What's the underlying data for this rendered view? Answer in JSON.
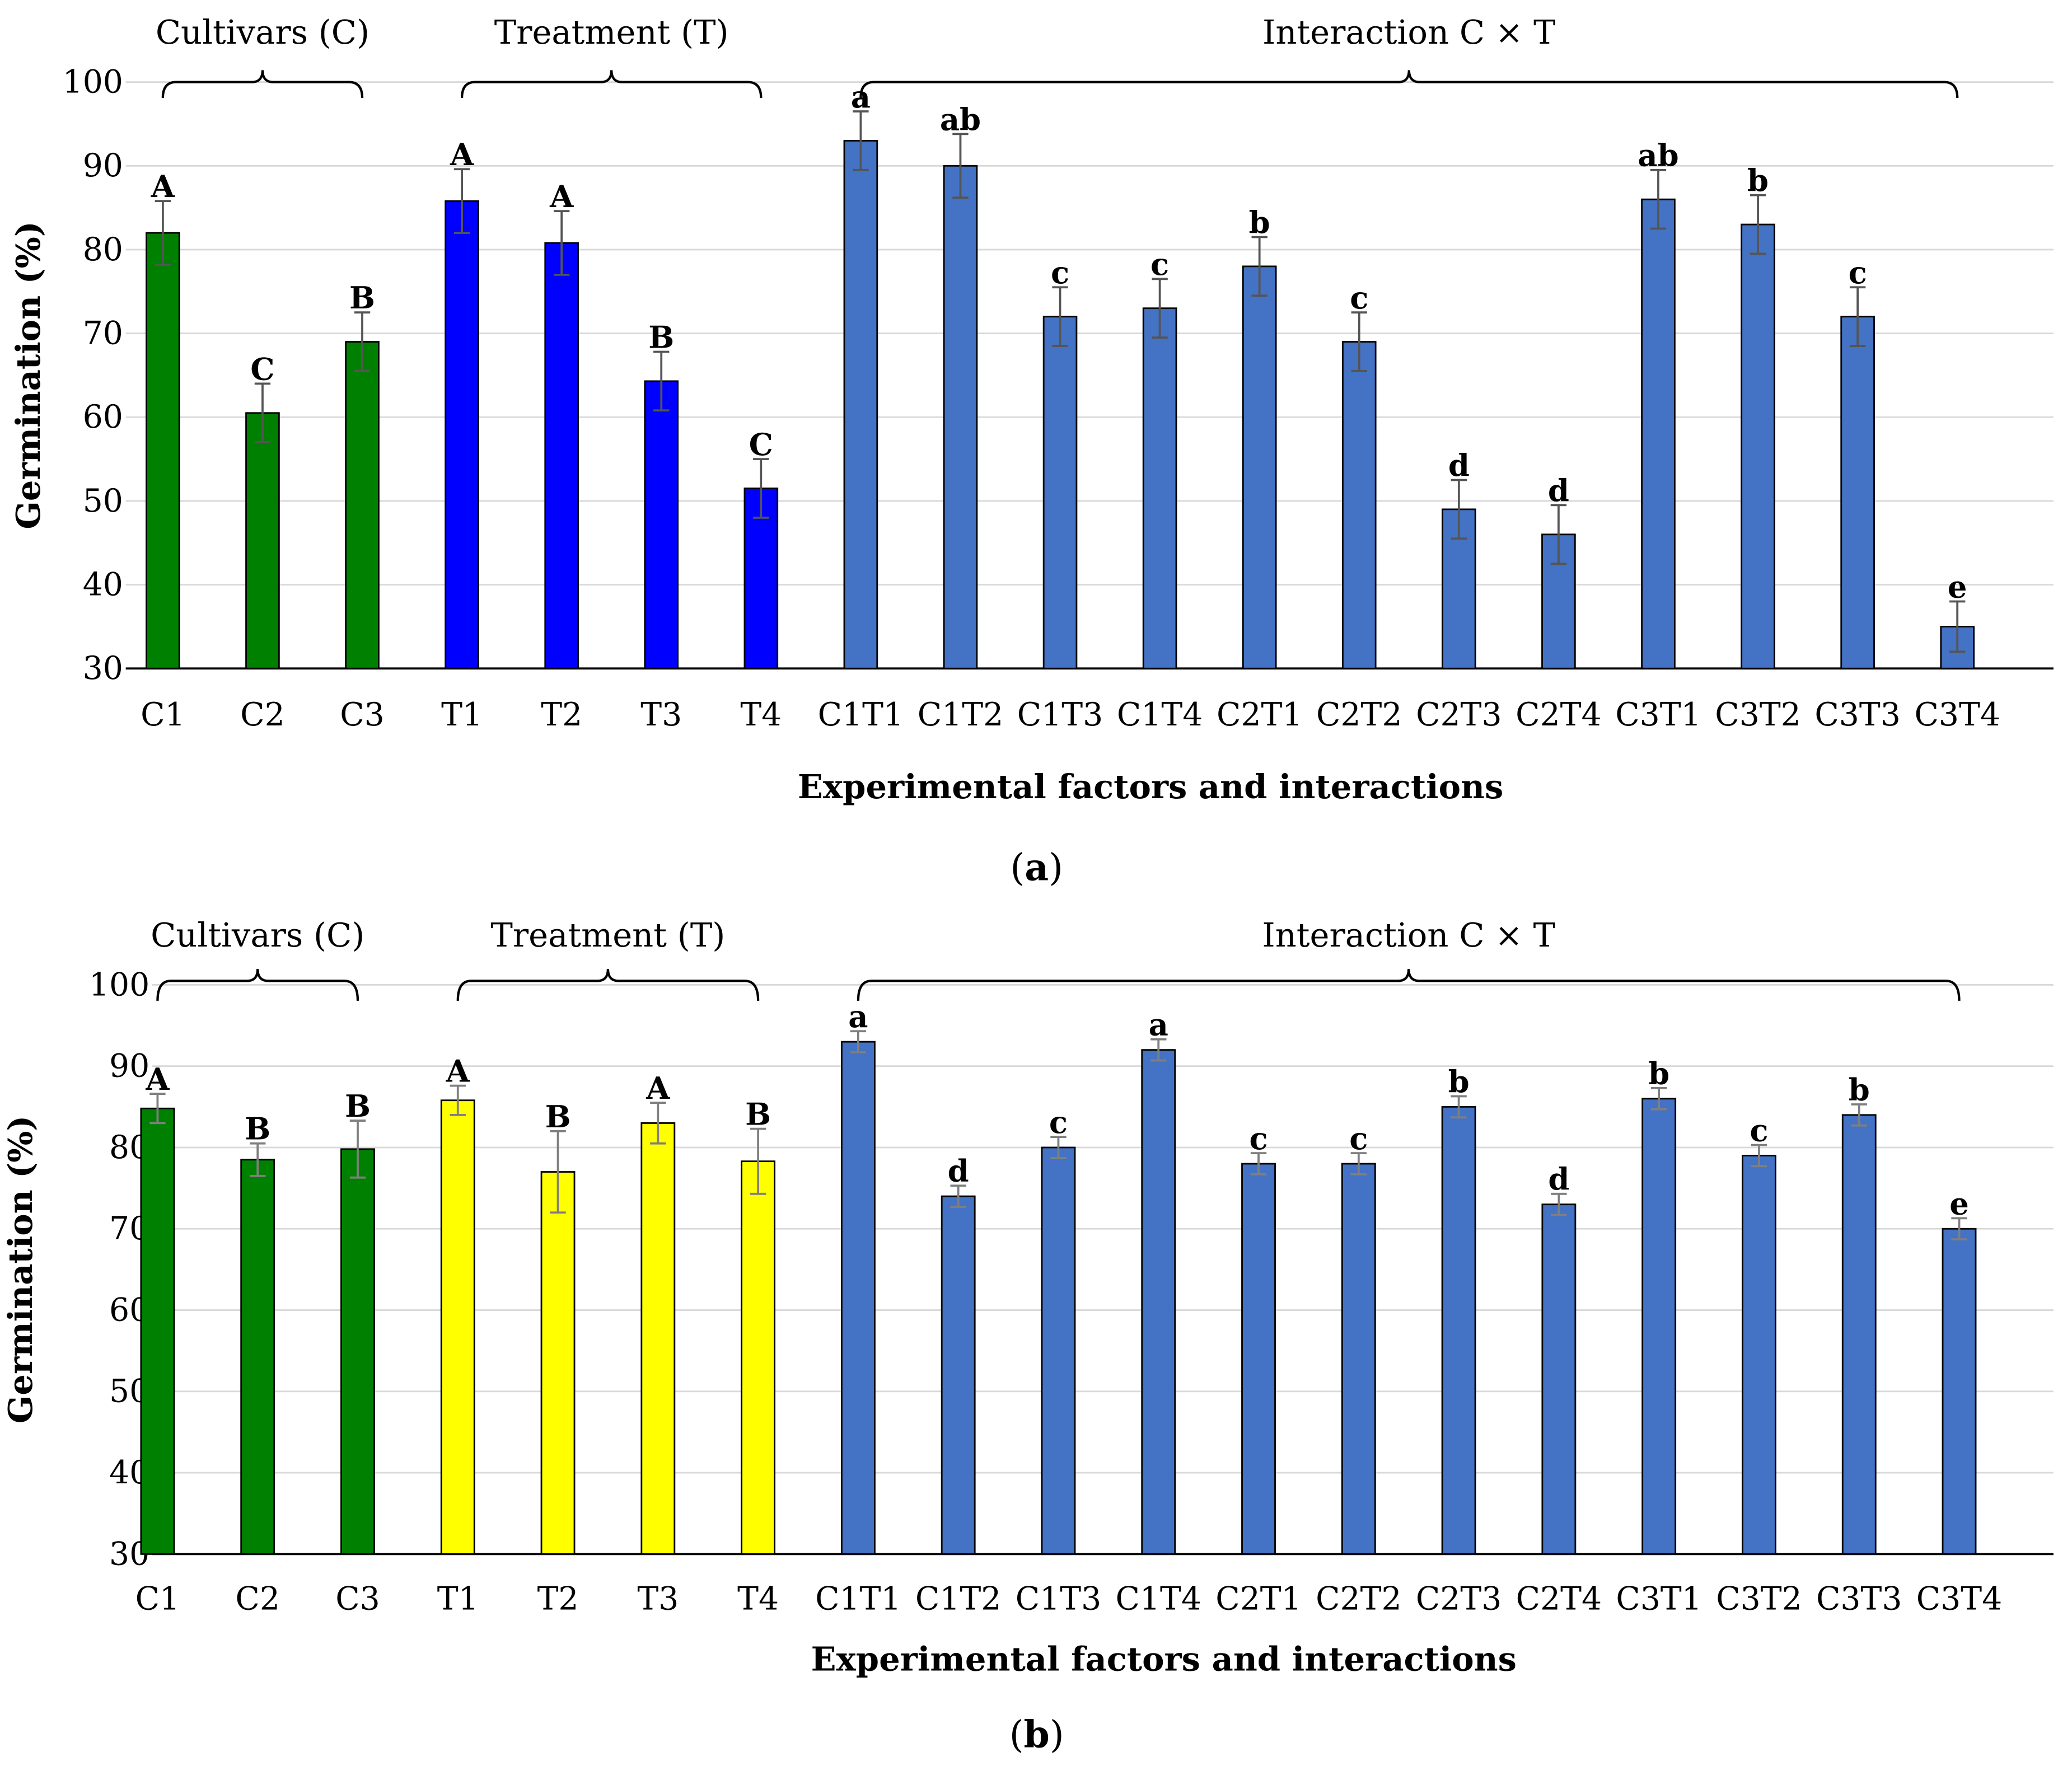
{
  "chart_data": [
    {
      "type": "bar",
      "panel_label": "a",
      "ylabel": "Germination (%)",
      "xlabel": "Experimental factors and interactions",
      "ylim": [
        30,
        100
      ],
      "yticks": [
        30,
        40,
        50,
        60,
        70,
        80,
        90,
        100
      ],
      "grid": true,
      "colors": {
        "cultivars": "#008000",
        "treatment": "#0000FF",
        "interaction": "#4472C4"
      },
      "groups": [
        {
          "label": "Cultivars (C)",
          "color_key": "cultivars",
          "categories": [
            "C1",
            "C2",
            "C3"
          ],
          "values": [
            82,
            60.5,
            69
          ],
          "errors": [
            3.8,
            3.5,
            3.5
          ],
          "letters": [
            "A",
            "C",
            "B"
          ]
        },
        {
          "label": "Treatment (T)",
          "color_key": "treatment",
          "categories": [
            "T1",
            "T2",
            "T3",
            "T4"
          ],
          "values": [
            85.8,
            80.8,
            64.3,
            51.5
          ],
          "errors": [
            3.8,
            3.8,
            3.5,
            3.5
          ],
          "letters": [
            "A",
            "A",
            "B",
            "C"
          ]
        },
        {
          "label": "Interaction C × T",
          "color_key": "interaction",
          "categories": [
            "C1T1",
            "C1T2",
            "C1T3",
            "C1T4",
            "C2T1",
            "C2T2",
            "C2T3",
            "C2T4",
            "C3T1",
            "C3T2",
            "C3T3",
            "C3T4"
          ],
          "values": [
            93,
            90,
            72,
            73,
            78,
            69,
            49,
            46,
            86,
            83,
            72,
            35
          ],
          "errors": [
            3.5,
            3.8,
            3.5,
            3.5,
            3.5,
            3.5,
            3.5,
            3.5,
            3.5,
            3.5,
            3.5,
            3.0
          ],
          "letters": [
            "a",
            "ab",
            "c",
            "c",
            "b",
            "c",
            "d",
            "d",
            "ab",
            "b",
            "c",
            "e"
          ]
        }
      ]
    },
    {
      "type": "bar",
      "panel_label": "b",
      "ylabel": "Germination (%)",
      "xlabel": "Experimental factors and interactions",
      "ylim": [
        30,
        100
      ],
      "yticks": [
        30,
        40,
        50,
        60,
        70,
        80,
        90,
        100
      ],
      "grid": true,
      "colors": {
        "cultivars": "#008000",
        "treatment": "#FFFF00",
        "interaction": "#4472C4"
      },
      "groups": [
        {
          "label": "Cultivars (C)",
          "color_key": "cultivars",
          "categories": [
            "C1",
            "C2",
            "C3"
          ],
          "values": [
            84.8,
            78.5,
            79.8
          ],
          "errors": [
            1.8,
            2.0,
            3.5
          ],
          "letters": [
            "A",
            "B",
            "B"
          ]
        },
        {
          "label": "Treatment (T)",
          "color_key": "treatment",
          "categories": [
            "T1",
            "T2",
            "T3",
            "T4"
          ],
          "values": [
            85.8,
            77.0,
            83.0,
            78.3
          ],
          "errors": [
            1.8,
            5.0,
            2.5,
            4.0
          ],
          "letters": [
            "A",
            "B",
            "A",
            "B"
          ]
        },
        {
          "label": "Interaction C × T",
          "color_key": "interaction",
          "categories": [
            "C1T1",
            "C1T2",
            "C1T3",
            "C1T4",
            "C2T1",
            "C2T2",
            "C2T3",
            "C2T4",
            "C3T1",
            "C3T2",
            "C3T3",
            "C3T4"
          ],
          "values": [
            93,
            74,
            80,
            92,
            78,
            78,
            85,
            73,
            86,
            79,
            84,
            70
          ],
          "errors": [
            1.3,
            1.3,
            1.3,
            1.3,
            1.3,
            1.3,
            1.3,
            1.3,
            1.3,
            1.3,
            1.3,
            1.3
          ],
          "letters": [
            "a",
            "d",
            "c",
            "a",
            "c",
            "c",
            "b",
            "d",
            "b",
            "c",
            "b",
            "e"
          ]
        }
      ]
    }
  ]
}
